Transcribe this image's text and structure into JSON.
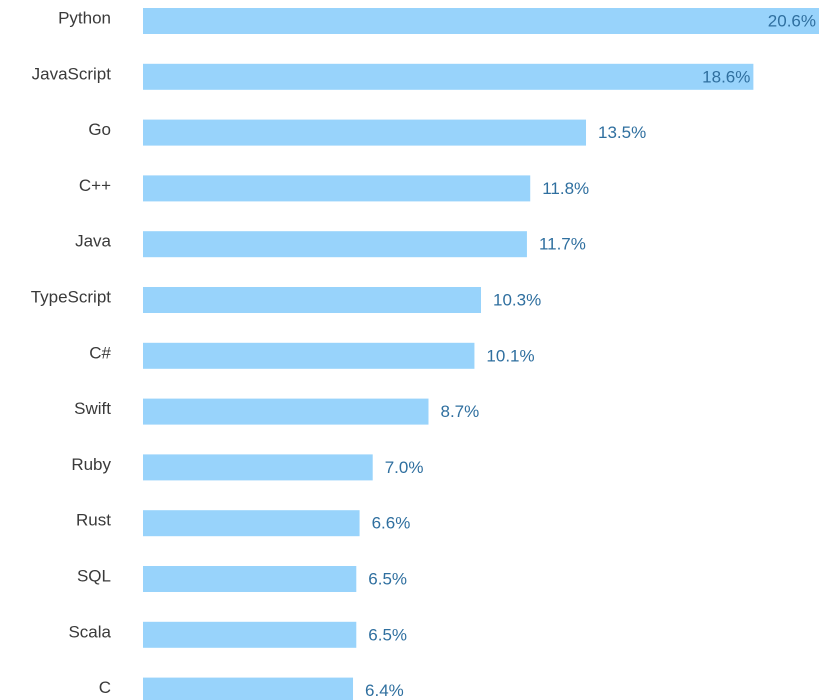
{
  "chart_data": {
    "type": "bar",
    "orientation": "horizontal",
    "categories": [
      "Python",
      "JavaScript",
      "Go",
      "C++",
      "Java",
      "TypeScript",
      "C#",
      "Swift",
      "Ruby",
      "Rust",
      "SQL",
      "Scala",
      "C"
    ],
    "values": [
      20.6,
      18.6,
      13.5,
      11.8,
      11.7,
      10.3,
      10.1,
      8.7,
      7.0,
      6.6,
      6.5,
      6.5,
      6.4
    ],
    "value_labels": [
      "20.6%",
      "18.6%",
      "13.5%",
      "11.8%",
      "11.7%",
      "10.3%",
      "10.1%",
      "8.7%",
      "7.0%",
      "6.6%",
      "6.5%",
      "6.5%",
      "6.4%"
    ],
    "xlim": [
      0,
      20.6
    ],
    "grid": false,
    "colors": {
      "bar": "#98d3fb",
      "value_label": "#2f6f9f",
      "category_label": "#3a3a3a"
    }
  }
}
